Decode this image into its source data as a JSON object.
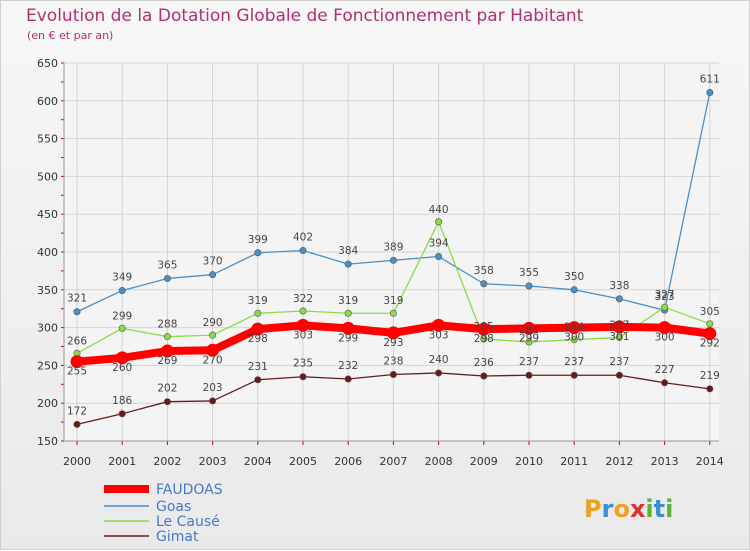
{
  "title": "Evolution de la Dotation Globale de Fonctionnement par Habitant",
  "subtitle": "(en € et par an)",
  "brand": "Proxiti",
  "chart_data": {
    "type": "line",
    "title": "Evolution de la Dotation Globale de Fonctionnement par Habitant",
    "subtitle": "(en € et par an)",
    "x": [
      "2000",
      "2001",
      "2002",
      "2003",
      "2004",
      "2005",
      "2006",
      "2007",
      "2008",
      "2009",
      "2010",
      "2011",
      "2012",
      "2013",
      "2014"
    ],
    "y_ticks": [
      150,
      200,
      250,
      300,
      350,
      400,
      450,
      500,
      550,
      600,
      650
    ],
    "ylim": [
      150,
      650
    ],
    "grid": true,
    "legend": "bottom-left",
    "series": [
      {
        "name": "FAUDOAS",
        "color": "#ff0000",
        "values": [
          255,
          260,
          269,
          270,
          298,
          303,
          299,
          293,
          303,
          298,
          299,
          300,
          301,
          300,
          292
        ]
      },
      {
        "name": "Goas",
        "color": "#4a90c8",
        "values": [
          321,
          349,
          365,
          370,
          399,
          402,
          384,
          389,
          394,
          358,
          355,
          350,
          338,
          323,
          611
        ]
      },
      {
        "name": "Le Causé",
        "color": "#88dd44",
        "values": [
          266,
          299,
          288,
          290,
          319,
          322,
          319,
          319,
          440,
          285,
          281,
          284,
          287,
          327,
          305
        ]
      },
      {
        "name": "Gimat",
        "color": "#6b1a1a",
        "values": [
          172,
          186,
          202,
          203,
          231,
          235,
          232,
          238,
          240,
          236,
          237,
          237,
          237,
          227,
          219
        ]
      }
    ]
  }
}
